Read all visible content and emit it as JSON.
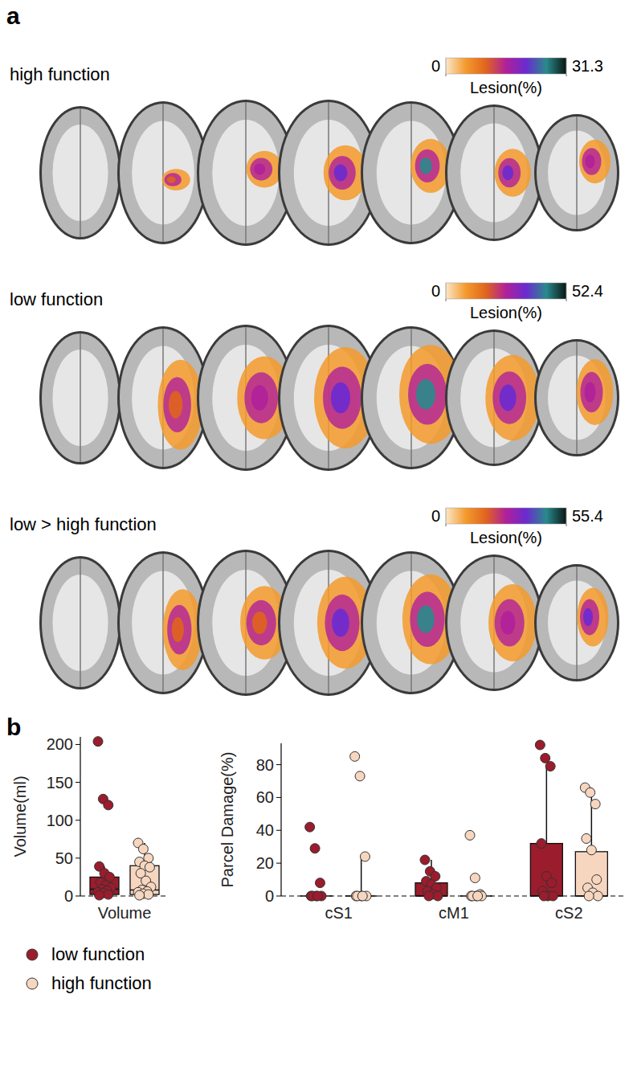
{
  "panel_labels": [
    "a",
    "b"
  ],
  "chart_data": [
    {
      "type": "lesion_map",
      "title": "high function",
      "colorbar_label": "Lesion(%)",
      "colorbar_range": [
        0,
        31.3
      ],
      "colorbar_ticks": [
        0,
        31.3
      ],
      "colors": [
        "#fbe6c8",
        "#f39a2c",
        "#e0641e",
        "#b0209a",
        "#6a2bd0",
        "#2a8a8c",
        "#0a1614"
      ]
    },
    {
      "type": "lesion_map",
      "title": "low function",
      "colorbar_label": "Lesion(%)",
      "colorbar_range": [
        0,
        52.4
      ],
      "colorbar_ticks": [
        0,
        52.4
      ],
      "colors": [
        "#fbe6c8",
        "#f39a2c",
        "#e0641e",
        "#b0209a",
        "#6a2bd0",
        "#2a8a8c",
        "#0a1614"
      ]
    },
    {
      "type": "lesion_map",
      "title": "low > high function",
      "colorbar_label": "Lesion(%)",
      "colorbar_range": [
        0,
        55.4
      ],
      "colorbar_ticks": [
        0,
        55.4
      ],
      "colors": [
        "#fbe6c8",
        "#f39a2c",
        "#e0641e",
        "#b0209a",
        "#6a2bd0",
        "#2a8a8c",
        "#0a1614"
      ]
    },
    {
      "type": "box",
      "y_label": "Volume(ml)",
      "categories": [
        "Volume"
      ],
      "ylim": [
        0,
        210
      ],
      "yticks": [
        0,
        50,
        100,
        150,
        200
      ],
      "legend": "bottom-left",
      "series": [
        {
          "name": "low function",
          "color": "#9b1c2c",
          "q1": [
            2
          ],
          "median": [
            9
          ],
          "q3": [
            25
          ],
          "whisker_low": [
            0
          ],
          "whisker_high": [
            39
          ],
          "points": [
            [
              204,
              128,
              120,
              39,
              30,
              25,
              18,
              14,
              11,
              9,
              7,
              5,
              4,
              2,
              1
            ]
          ]
        },
        {
          "name": "high function",
          "color": "#f7d6c0",
          "q1": [
            2
          ],
          "median": [
            8
          ],
          "q3": [
            40
          ],
          "whisker_low": [
            0
          ],
          "whisker_high": [
            70
          ],
          "points": [
            [
              70,
              62,
              50,
              45,
              40,
              38,
              30,
              20,
              12,
              8,
              6,
              5,
              3,
              2,
              1
            ]
          ]
        }
      ]
    },
    {
      "type": "box",
      "y_label": "Parcel Damage(%)",
      "categories": [
        "cS1",
        "cM1",
        "cS2"
      ],
      "ylim": [
        0,
        93
      ],
      "yticks": [
        0,
        20,
        40,
        60,
        80
      ],
      "series": [
        {
          "name": "low function",
          "color": "#9b1c2c",
          "q1": [
            0,
            0,
            0
          ],
          "median": [
            0,
            0,
            0
          ],
          "q3": [
            0,
            8,
            32
          ],
          "whisker_low": [
            0,
            0,
            0
          ],
          "whisker_high": [
            0,
            22,
            79
          ],
          "points": [
            [
              42,
              29,
              8,
              0,
              0,
              0,
              0,
              0
            ],
            [
              22,
              15,
              12,
              9,
              7,
              5,
              3,
              1,
              0,
              0
            ],
            [
              92,
              84,
              79,
              32,
              12,
              8,
              3,
              0,
              0,
              0
            ]
          ]
        },
        {
          "name": "high function",
          "color": "#f7d6c0",
          "q1": [
            0,
            0,
            0
          ],
          "median": [
            0,
            0,
            0
          ],
          "q3": [
            0,
            0,
            27
          ],
          "whisker_low": [
            0,
            0,
            0
          ],
          "whisker_high": [
            24,
            0,
            66
          ],
          "points": [
            [
              85,
              73,
              24,
              0,
              0,
              0,
              0,
              0
            ],
            [
              37,
              11,
              1,
              0,
              0,
              0,
              0,
              0
            ],
            [
              66,
              63,
              56,
              35,
              28,
              10,
              5,
              2,
              0,
              0
            ]
          ]
        }
      ]
    }
  ]
}
